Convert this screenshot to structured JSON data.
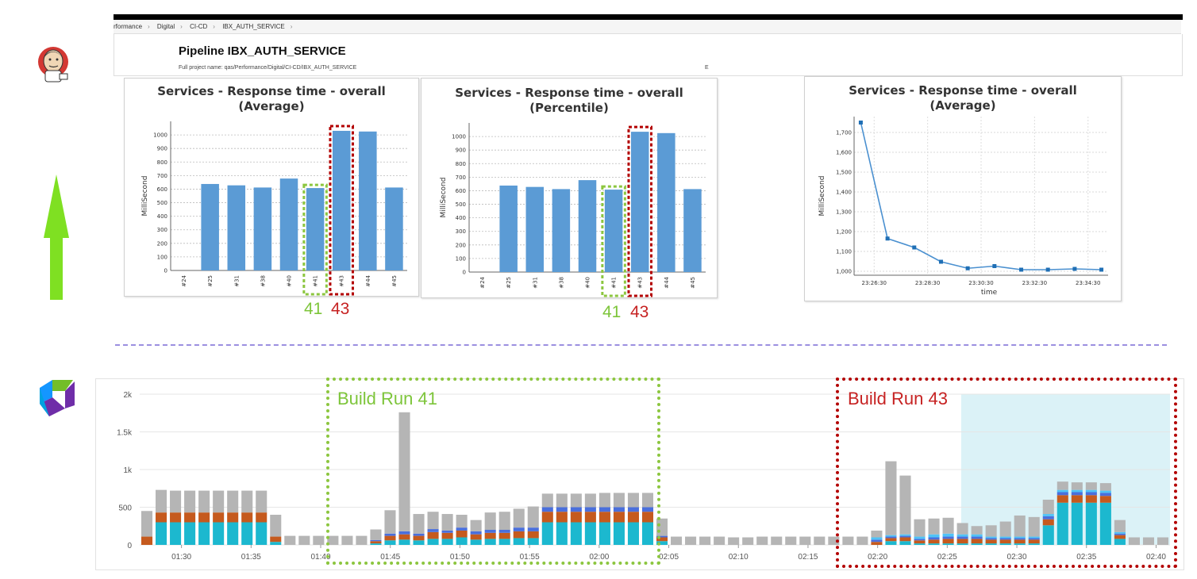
{
  "breadcrumb": [
    "rformance",
    "Digital",
    "CI-CD",
    "IBX_AUTH_SERVICE",
    ""
  ],
  "pipeline": {
    "title": "Pipeline IBX_AUTH_SERVICE",
    "full_name": "Full project name: qas/Performance/Digital/CI-CD/IBX_AUTH_SERVICE",
    "extra": "E"
  },
  "icons": {
    "jenkins": "jenkins-logo-icon",
    "arrow": "up-arrow-icon",
    "dynatrace": "dynatrace-logo-icon"
  },
  "colors": {
    "bar": "#5b9bd5",
    "line": "#4a90d0",
    "green_highlight": "#8cc63f",
    "red_highlight": "#b30000",
    "teal": "#1cb8cf",
    "orange": "#c55a1e",
    "blue": "#4a6fdc",
    "lightblue": "#4fc3f7",
    "gray": "#b5b5b5",
    "shade": "#dbf2f7"
  },
  "labels": {
    "run41": "41",
    "run43": "43",
    "build41": "Build Run 41",
    "build43": "Build Run 43"
  },
  "chart_data": [
    {
      "type": "bar",
      "title_line1": "Services - Response time - overall",
      "title_line2": "(Average)",
      "ylabel": "MilliSecond",
      "categories": [
        "#24",
        "#25",
        "#31",
        "#38",
        "#40",
        "#41",
        "#43",
        "#44",
        "#45"
      ],
      "values": [
        0,
        638,
        628,
        612,
        678,
        608,
        1030,
        1025,
        612
      ],
      "ylim": [
        0,
        1100
      ],
      "yticks": [
        0,
        100,
        200,
        300,
        400,
        500,
        600,
        700,
        800,
        900,
        1000
      ],
      "grid": true
    },
    {
      "type": "bar",
      "title_line1": "Services - Response time - overall",
      "title_line2": "(Percentile)",
      "ylabel": "MilliSecond",
      "categories": [
        "#24",
        "#25",
        "#31",
        "#38",
        "#40",
        "#41",
        "#43",
        "#44",
        "#45"
      ],
      "values": [
        0,
        638,
        628,
        612,
        678,
        608,
        1035,
        1025,
        612
      ],
      "ylim": [
        0,
        1100
      ],
      "yticks": [
        0,
        100,
        200,
        300,
        400,
        500,
        600,
        700,
        800,
        900,
        1000
      ],
      "grid": true
    },
    {
      "type": "line",
      "title_line1": "Services - Response time - overall",
      "title_line2": "(Average)",
      "ylabel": "MilliSecond",
      "xlabel": "time",
      "xticks": [
        "23:26:30",
        "23:28:30",
        "23:30:30",
        "23:32:30",
        "23:34:30"
      ],
      "x": [
        "23:26:00",
        "23:27:00",
        "23:28:00",
        "23:29:00",
        "23:30:00",
        "23:31:00",
        "23:32:00",
        "23:33:00",
        "23:34:00",
        "23:35:00"
      ],
      "values": [
        1750,
        1165,
        1120,
        1048,
        1015,
        1026,
        1008,
        1008,
        1012,
        1008
      ],
      "ylim": [
        980,
        1780
      ],
      "yticks": [
        "1,000",
        "1,100",
        "1,200",
        "1,300",
        "1,400",
        "1,500",
        "1,600",
        "1,700"
      ],
      "grid": true
    },
    {
      "type": "bar",
      "stacked": true,
      "ylim": [
        0,
        2000
      ],
      "yticks": [
        "0",
        "500",
        "1k",
        "1.5k",
        "2k"
      ],
      "xticks": [
        "01:30",
        "01:35",
        "01:40",
        "01:45",
        "01:50",
        "01:55",
        "02:00",
        "02:05",
        "02:10",
        "02:15",
        "02:20",
        "02:25",
        "02:30",
        "02:35",
        "02:40"
      ],
      "x_start": "01:27",
      "x_end": "02:41",
      "bin_minutes": 1,
      "series_order": [
        "teal",
        "orange",
        "blue",
        "lightblue",
        "gray"
      ],
      "bars": [
        [
          0,
          110,
          0,
          0,
          340
        ],
        [
          300,
          130,
          0,
          0,
          300
        ],
        [
          300,
          130,
          0,
          0,
          290
        ],
        [
          300,
          130,
          0,
          0,
          290
        ],
        [
          300,
          130,
          0,
          0,
          290
        ],
        [
          300,
          130,
          0,
          0,
          290
        ],
        [
          300,
          130,
          0,
          0,
          290
        ],
        [
          300,
          130,
          0,
          0,
          290
        ],
        [
          300,
          130,
          0,
          0,
          290
        ],
        [
          40,
          70,
          0,
          0,
          290
        ],
        [
          0,
          0,
          0,
          0,
          120
        ],
        [
          0,
          0,
          0,
          0,
          120
        ],
        [
          0,
          0,
          0,
          0,
          120
        ],
        [
          0,
          0,
          0,
          0,
          120
        ],
        [
          0,
          0,
          0,
          0,
          120
        ],
        [
          0,
          0,
          0,
          0,
          120
        ],
        [
          20,
          30,
          15,
          0,
          140
        ],
        [
          60,
          60,
          30,
          0,
          310
        ],
        [
          70,
          70,
          40,
          0,
          1580
        ],
        [
          60,
          60,
          30,
          0,
          260
        ],
        [
          80,
          90,
          40,
          0,
          230
        ],
        [
          80,
          80,
          30,
          0,
          220
        ],
        [
          100,
          90,
          40,
          0,
          170
        ],
        [
          70,
          70,
          40,
          0,
          150
        ],
        [
          80,
          80,
          40,
          0,
          230
        ],
        [
          80,
          80,
          40,
          0,
          240
        ],
        [
          90,
          90,
          50,
          0,
          250
        ],
        [
          90,
          90,
          50,
          0,
          280
        ],
        [
          300,
          140,
          60,
          0,
          180
        ],
        [
          300,
          140,
          60,
          0,
          180
        ],
        [
          300,
          140,
          60,
          0,
          180
        ],
        [
          300,
          140,
          60,
          0,
          180
        ],
        [
          300,
          140,
          60,
          0,
          190
        ],
        [
          300,
          140,
          60,
          0,
          190
        ],
        [
          300,
          140,
          60,
          0,
          190
        ],
        [
          300,
          140,
          60,
          0,
          190
        ],
        [
          50,
          50,
          20,
          0,
          230
        ],
        [
          0,
          0,
          0,
          0,
          110
        ],
        [
          0,
          0,
          0,
          0,
          110
        ],
        [
          0,
          0,
          0,
          0,
          110
        ],
        [
          0,
          0,
          0,
          0,
          110
        ],
        [
          0,
          0,
          0,
          0,
          100
        ],
        [
          0,
          0,
          0,
          0,
          100
        ],
        [
          0,
          0,
          0,
          0,
          110
        ],
        [
          0,
          0,
          0,
          0,
          110
        ],
        [
          0,
          0,
          0,
          0,
          110
        ],
        [
          0,
          0,
          0,
          0,
          110
        ],
        [
          0,
          0,
          0,
          0,
          110
        ],
        [
          0,
          0,
          0,
          0,
          110
        ],
        [
          0,
          0,
          0,
          0,
          110
        ],
        [
          0,
          0,
          0,
          0,
          110
        ],
        [
          0,
          40,
          30,
          30,
          90
        ],
        [
          50,
          40,
          20,
          20,
          980
        ],
        [
          50,
          50,
          20,
          20,
          780
        ],
        [
          20,
          40,
          20,
          30,
          230
        ],
        [
          20,
          50,
          30,
          40,
          210
        ],
        [
          20,
          60,
          30,
          40,
          210
        ],
        [
          20,
          60,
          30,
          30,
          150
        ],
        [
          20,
          60,
          30,
          30,
          110
        ],
        [
          20,
          50,
          20,
          20,
          150
        ],
        [
          20,
          50,
          20,
          20,
          200
        ],
        [
          20,
          50,
          20,
          20,
          280
        ],
        [
          20,
          50,
          20,
          20,
          260
        ],
        [
          260,
          80,
          40,
          30,
          190
        ],
        [
          560,
          100,
          40,
          30,
          110
        ],
        [
          560,
          100,
          40,
          30,
          100
        ],
        [
          560,
          100,
          40,
          30,
          100
        ],
        [
          560,
          90,
          40,
          30,
          100
        ],
        [
          80,
          50,
          20,
          20,
          160
        ],
        [
          0,
          0,
          0,
          0,
          100
        ],
        [
          0,
          0,
          0,
          0,
          100
        ],
        [
          0,
          0,
          0,
          0,
          100
        ]
      ]
    }
  ]
}
